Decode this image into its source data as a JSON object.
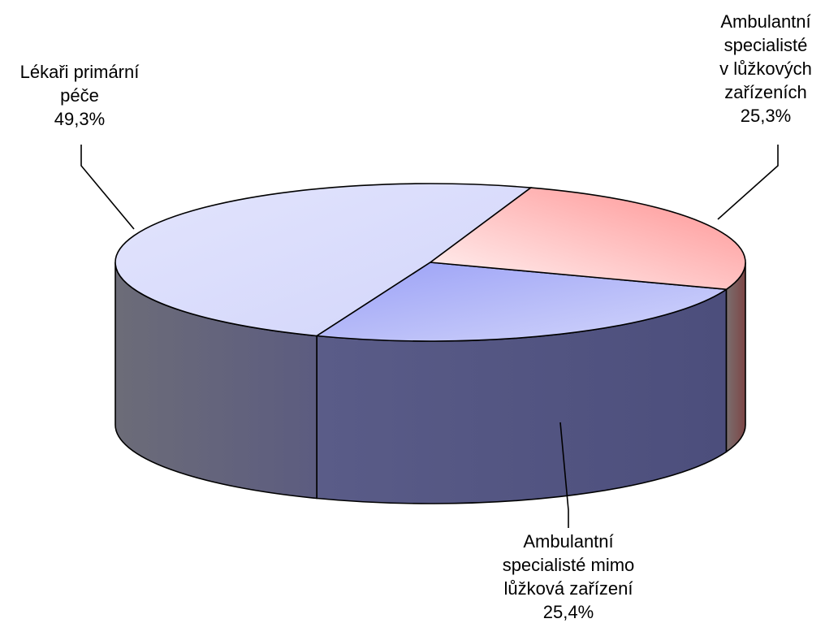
{
  "chart_data": {
    "type": "pie",
    "title": "",
    "slices": [
      {
        "label": [
          "Lékaři primární",
          "péče"
        ],
        "value": 49.3,
        "value_label": "49,3%",
        "color": "#d8dcfb"
      },
      {
        "label": [
          "Ambulantní",
          "specialisté",
          "v lůžkových",
          "zařízeních"
        ],
        "value": 25.3,
        "value_label": "25,3%",
        "color": "#a7acf6"
      },
      {
        "label": [
          "Ambulantní",
          "specialisté mimo",
          "lůžková zařízení"
        ],
        "value": 25.4,
        "value_label": "25,4%",
        "color": "#ff9d9d"
      }
    ]
  }
}
